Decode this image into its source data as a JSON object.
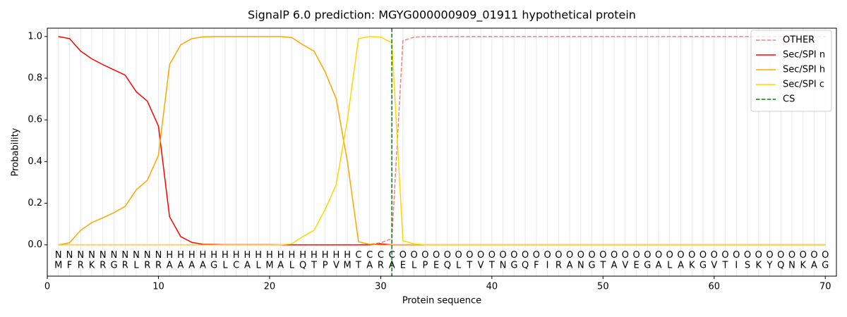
{
  "chart_data": {
    "type": "line",
    "title": "SignalP 6.0 prediction: MGYG000000909_01911 hypothetical protein",
    "x_label": "Protein sequence",
    "y_label": "Probability",
    "x": [
      1,
      2,
      3,
      4,
      5,
      6,
      7,
      8,
      9,
      10,
      11,
      12,
      13,
      14,
      15,
      16,
      17,
      18,
      19,
      20,
      21,
      22,
      23,
      24,
      25,
      26,
      27,
      28,
      29,
      30,
      31,
      32,
      33,
      34,
      35,
      36,
      37,
      38,
      39,
      40,
      41,
      42,
      43,
      44,
      45,
      46,
      47,
      48,
      49,
      50,
      51,
      52,
      53,
      54,
      55,
      56,
      57,
      58,
      59,
      60,
      61,
      62,
      63,
      64,
      65,
      66,
      67,
      68,
      69,
      70
    ],
    "residues": [
      "M",
      "F",
      "R",
      "K",
      "R",
      "G",
      "R",
      "L",
      "R",
      "R",
      "A",
      "A",
      "A",
      "A",
      "G",
      "L",
      "C",
      "A",
      "L",
      "M",
      "A",
      "L",
      "Q",
      "T",
      "P",
      "V",
      "M",
      "T",
      "A",
      "R",
      "A",
      "E",
      "L",
      "P",
      "E",
      "Q",
      "L",
      "T",
      "V",
      "T",
      "N",
      "G",
      "Q",
      "F",
      "I",
      "R",
      "A",
      "N",
      "G",
      "T",
      "A",
      "V",
      "E",
      "G",
      "A",
      "L",
      "A",
      "K",
      "G",
      "V",
      "T",
      "I",
      "S",
      "K",
      "Y",
      "Q",
      "N",
      "K",
      "A",
      "G"
    ],
    "region_labels": [
      "N",
      "N",
      "N",
      "N",
      "N",
      "N",
      "N",
      "N",
      "N",
      "N",
      "H",
      "H",
      "H",
      "H",
      "H",
      "H",
      "H",
      "H",
      "H",
      "H",
      "H",
      "H",
      "H",
      "H",
      "H",
      "H",
      "H",
      "C",
      "C",
      "C",
      "C",
      "O",
      "O",
      "O",
      "O",
      "O",
      "O",
      "O",
      "O",
      "O",
      "O",
      "O",
      "O",
      "O",
      "O",
      "O",
      "O",
      "O",
      "O",
      "O",
      "O",
      "O",
      "O",
      "O",
      "O",
      "O",
      "O",
      "O",
      "O",
      "O",
      "O",
      "O",
      "O",
      "O",
      "O",
      "O",
      "O",
      "O",
      "O",
      "O"
    ],
    "region_colors": {
      "N": "#ff0000",
      "H": "#ffa500",
      "C": "#ffd700",
      "O": "#808080"
    },
    "series": [
      {
        "name": "OTHER",
        "color": "#f08080",
        "dash": true,
        "values": [
          0,
          0,
          0,
          0,
          0,
          0,
          0,
          0,
          0,
          0,
          0,
          0,
          0,
          0,
          0,
          0,
          0,
          0,
          0,
          0,
          0,
          0,
          0,
          0,
          0,
          0,
          0,
          0,
          0.003,
          0.01,
          0.03,
          0.98,
          0.997,
          1,
          1,
          1,
          1,
          1,
          1,
          1,
          1,
          1,
          1,
          1,
          1,
          1,
          1,
          1,
          1,
          1,
          1,
          1,
          1,
          1,
          1,
          1,
          1,
          1,
          1,
          1,
          1,
          1,
          1,
          1,
          1,
          1,
          1,
          1,
          1,
          1
        ]
      },
      {
        "name": "Sec/SPI n",
        "color": "#ff0000",
        "dash": false,
        "values": [
          1,
          0.99,
          0.93,
          0.893,
          0.865,
          0.84,
          0.815,
          0.735,
          0.69,
          0.57,
          0.135,
          0.04,
          0.012,
          0.003,
          0.002,
          0.001,
          0.001,
          0.001,
          0.001,
          0.001,
          0,
          0,
          0,
          0,
          0,
          0,
          0,
          0,
          0,
          0.005,
          0,
          0,
          0,
          0,
          0,
          0,
          0,
          0,
          0,
          0,
          0,
          0,
          0,
          0,
          0,
          0,
          0,
          0,
          0,
          0,
          0,
          0,
          0,
          0,
          0,
          0,
          0,
          0,
          0,
          0,
          0,
          0,
          0,
          0,
          0,
          0,
          0,
          0,
          0,
          0
        ]
      },
      {
        "name": "Sec/SPI h",
        "color": "#ffa500",
        "dash": false,
        "values": [
          0,
          0.01,
          0.07,
          0.107,
          0.13,
          0.155,
          0.185,
          0.264,
          0.31,
          0.43,
          0.865,
          0.96,
          0.99,
          0.998,
          1,
          1,
          1,
          1,
          1,
          1,
          1,
          0.995,
          0.96,
          0.93,
          0.83,
          0.7,
          0.4,
          0.015,
          0.003,
          0,
          0,
          0,
          0,
          0,
          0,
          0,
          0,
          0,
          0,
          0,
          0,
          0,
          0,
          0,
          0,
          0,
          0,
          0,
          0,
          0,
          0,
          0,
          0,
          0,
          0,
          0,
          0,
          0,
          0,
          0,
          0,
          0,
          0,
          0,
          0,
          0,
          0,
          0,
          0,
          0
        ]
      },
      {
        "name": "Sec/SPI c",
        "color": "#ffd700",
        "dash": false,
        "values": [
          0,
          0,
          0,
          0,
          0,
          0,
          0,
          0,
          0,
          0,
          0,
          0,
          0,
          0,
          0,
          0,
          0,
          0,
          0,
          0,
          0,
          0.005,
          0.04,
          0.07,
          0.17,
          0.29,
          0.6,
          0.99,
          1,
          0.997,
          0.97,
          0.02,
          0.005,
          0,
          0,
          0,
          0,
          0,
          0,
          0,
          0,
          0,
          0,
          0,
          0,
          0,
          0,
          0,
          0,
          0,
          0,
          0,
          0,
          0,
          0,
          0,
          0,
          0,
          0,
          0,
          0,
          0,
          0,
          0,
          0,
          0,
          0,
          0,
          0,
          0
        ]
      }
    ],
    "cs": {
      "name": "CS",
      "x": 31,
      "color": "#008000"
    },
    "xlim": [
      0,
      71
    ],
    "ylim": [
      -0.15,
      1.04
    ],
    "xticks": [
      0,
      10,
      20,
      30,
      40,
      50,
      60,
      70
    ],
    "yticks": [
      {
        "value": 0,
        "label": "0.0"
      },
      0.2,
      0.4,
      0.6,
      0.8,
      {
        "value": 1,
        "label": "1.0"
      }
    ],
    "grid": true,
    "legend": "upper right"
  }
}
